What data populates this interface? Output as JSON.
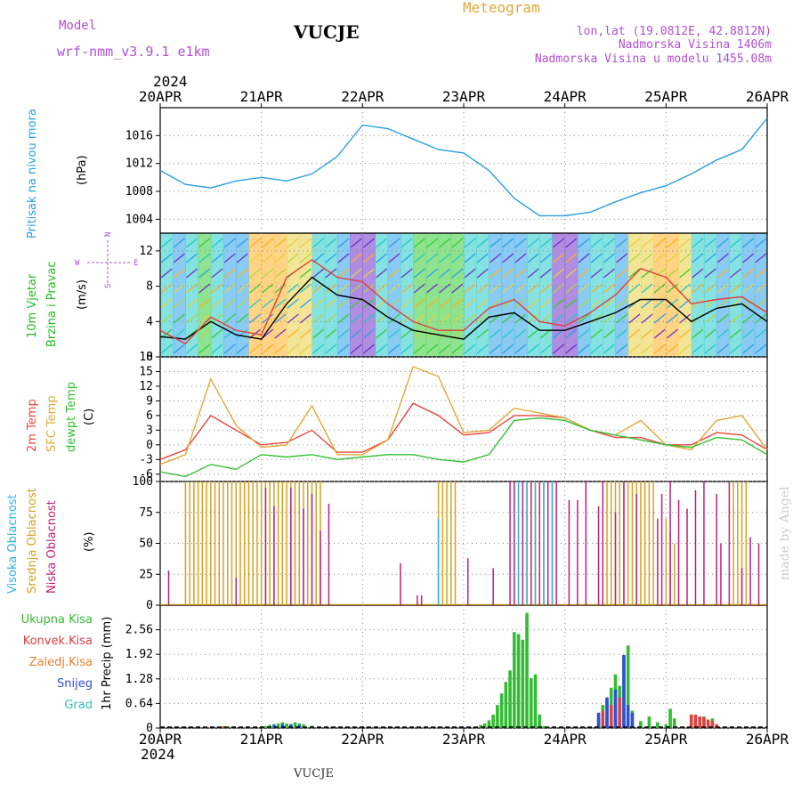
{
  "header": {
    "model_label": "Model",
    "model_value": "wrf-nmm_v3.9.1  e1km",
    "station": "VUCJE",
    "meteogram_label": "Meteogram",
    "lonlat": "lon,lat (19.0812E, 42.8812N)",
    "altitude": "Nadmorska Visina 1406m",
    "model_altitude": "Nadmorska Visina u modelu 1455.08m",
    "year_top": "2024",
    "year_bottom": "2024",
    "footer_station": "VUCJE",
    "credit": "made by Angel"
  },
  "colors": {
    "pressure": "#2b9fe0",
    "wind_mean": "#000000",
    "wind_gust": "#e0403a",
    "temp2m": "#e8453c",
    "sfctemp": "#e0a838",
    "dewpt": "#33c033",
    "high_cloud": "#30b0e0",
    "mid_cloud": "#d8a020",
    "low_cloud": "#c0207a",
    "total_precip": "#33bb33",
    "conv_precip": "#e04040",
    "frozen_precip": "#e88030",
    "snow": "#3050d8",
    "hail": "#30c0c0",
    "wind_label": "#22bb22",
    "rose": "#b050d0"
  },
  "chart_data": [
    {
      "type": "line",
      "title": "",
      "ylabel_left": "Pritisak na nivou mora",
      "ylabel_right": "(hPa)",
      "x_ticks": [
        "20APR",
        "21APR",
        "22APR",
        "23APR",
        "24APR",
        "25APR",
        "26APR"
      ],
      "ylim": [
        1002,
        1020
      ],
      "y_ticks": [
        1004,
        1008,
        1012,
        1016
      ],
      "grid": true,
      "series": [
        {
          "name": "pressure",
          "x_hours": [
            0,
            6,
            12,
            18,
            24,
            30,
            36,
            42,
            48,
            54,
            60,
            66,
            72,
            78,
            84,
            90,
            96,
            102,
            108,
            114,
            120,
            126,
            132,
            138,
            144
          ],
          "values": [
            1011,
            1009,
            1008.5,
            1009.5,
            1010,
            1009.5,
            1010.5,
            1013,
            1017.5,
            1017,
            1015.5,
            1014,
            1013.5,
            1011,
            1007,
            1004.5,
            1004.5,
            1005,
            1006.5,
            1007.8,
            1008.8,
            1010.5,
            1012.5,
            1014,
            1018.5
          ]
        }
      ]
    },
    {
      "type": "line",
      "title": "",
      "ylabel_left": "10m Vjetar Brzina i Pravac",
      "ylabel_right": "(m/s)",
      "rose_labels": [
        "N",
        "E",
        "W",
        "S"
      ],
      "ylim": [
        0,
        14
      ],
      "y_ticks": [
        0,
        4,
        8,
        12
      ],
      "grid": true,
      "series": [
        {
          "name": "mean",
          "x_hours": [
            0,
            6,
            12,
            18,
            24,
            30,
            36,
            42,
            48,
            54,
            60,
            66,
            72,
            78,
            84,
            90,
            96,
            102,
            108,
            114,
            120,
            126,
            132,
            138,
            144
          ],
          "values": [
            2.3,
            2,
            4,
            2.5,
            2,
            6,
            9,
            7,
            6.5,
            4.5,
            3,
            2.5,
            2,
            4.5,
            5,
            3,
            3,
            4,
            5,
            6.5,
            6.5,
            4,
            5.5,
            6,
            4
          ]
        },
        {
          "name": "gust",
          "x_hours": [
            0,
            6,
            12,
            18,
            24,
            30,
            36,
            42,
            48,
            54,
            60,
            66,
            72,
            78,
            84,
            90,
            96,
            102,
            108,
            114,
            120,
            126,
            132,
            138,
            144
          ],
          "values": [
            3,
            1.5,
            4.5,
            3,
            2.5,
            9,
            11,
            9,
            8.5,
            6,
            4,
            3,
            3,
            5.5,
            6.5,
            4,
            3.5,
            5,
            7,
            10,
            9,
            6,
            6.5,
            6.8,
            5
          ]
        }
      ]
    },
    {
      "type": "line",
      "title": "",
      "ylabel_left": [
        "2m Temp",
        "SFC Temp",
        "dewpt Temp"
      ],
      "ylabel_right": "(C)",
      "ylim": [
        -7.5,
        18
      ],
      "y_ticks": [
        -6,
        -3,
        0,
        3,
        6,
        9,
        12,
        15,
        18
      ],
      "grid": true,
      "series": [
        {
          "name": "2m Temp",
          "x_hours": [
            0,
            6,
            12,
            18,
            24,
            30,
            36,
            42,
            48,
            54,
            60,
            66,
            72,
            78,
            84,
            90,
            96,
            102,
            108,
            114,
            120,
            126,
            132,
            138,
            144
          ],
          "values": [
            -3,
            -1,
            6,
            3,
            0,
            0.5,
            3,
            -1.5,
            -1.5,
            1,
            8.5,
            6,
            2,
            2.5,
            6,
            6,
            5.5,
            3,
            1.5,
            1.5,
            0,
            0,
            2.5,
            2,
            -1
          ]
        },
        {
          "name": "SFC Temp",
          "x_hours": [
            0,
            6,
            12,
            18,
            24,
            30,
            36,
            42,
            48,
            54,
            60,
            66,
            72,
            78,
            84,
            90,
            96,
            102,
            108,
            114,
            120,
            126,
            132,
            138,
            144
          ],
          "values": [
            -4,
            -2,
            13.5,
            4,
            -0.5,
            0,
            8,
            -2,
            -2,
            1,
            16,
            14,
            2.5,
            3,
            7.5,
            6.5,
            5.5,
            3,
            2,
            5,
            0,
            -1,
            5,
            6,
            -1
          ]
        },
        {
          "name": "dewpt Temp",
          "x_hours": [
            0,
            6,
            12,
            18,
            24,
            30,
            36,
            42,
            48,
            54,
            60,
            66,
            72,
            78,
            84,
            90,
            96,
            102,
            108,
            114,
            120,
            126,
            132,
            138,
            144
          ],
          "values": [
            -5.5,
            -6.5,
            -4,
            -5,
            -2,
            -2.5,
            -2,
            -3,
            -2.5,
            -2,
            -2,
            -3,
            -3.5,
            -2,
            5,
            5.5,
            5,
            3,
            2,
            1,
            0,
            -0.5,
            1.5,
            1,
            -2
          ]
        }
      ]
    },
    {
      "type": "bar",
      "title": "",
      "ylabel_left": [
        "Visoka Oblacnost",
        "Srednja Oblacnost",
        "Niska Oblacnost"
      ],
      "ylabel_right": "(%)",
      "ylim": [
        0,
        100
      ],
      "y_ticks": [
        0,
        25,
        50,
        75,
        100
      ],
      "grid": true,
      "series": [
        {
          "name": "Srednja Oblacnost",
          "x_hours": [
            6,
            7,
            8,
            9,
            10,
            11,
            12,
            13,
            14,
            15,
            16,
            17,
            18,
            19,
            20,
            21,
            22,
            23,
            24,
            25,
            26,
            27,
            28,
            29,
            30,
            31,
            32,
            33,
            34,
            35,
            36,
            37,
            38,
            66,
            67,
            68,
            69,
            70,
            87,
            88,
            89,
            90,
            91,
            92,
            93,
            106,
            107,
            108,
            109,
            110,
            111,
            112,
            113,
            114,
            115,
            116,
            117,
            120,
            121,
            122,
            136,
            137,
            138,
            139
          ],
          "values": [
            100,
            100,
            100,
            100,
            100,
            100,
            100,
            100,
            100,
            100,
            100,
            100,
            100,
            100,
            100,
            100,
            100,
            100,
            100,
            100,
            100,
            100,
            100,
            100,
            100,
            100,
            100,
            100,
            100,
            100,
            100,
            100,
            100,
            100,
            100,
            100,
            100,
            100,
            100,
            100,
            100,
            100,
            100,
            100,
            100,
            100,
            100,
            100,
            100,
            100,
            100,
            100,
            100,
            100,
            100,
            100,
            100,
            70,
            60,
            50,
            100,
            100,
            100,
            100
          ]
        },
        {
          "name": "Niska Oblacnost",
          "x_hours": [
            2,
            18,
            25,
            27,
            31,
            34,
            36,
            38,
            40,
            57,
            61,
            62,
            73,
            79,
            83,
            84,
            86,
            88,
            90,
            92,
            94,
            97,
            99,
            101,
            104,
            105,
            108,
            110,
            113,
            118,
            119,
            121,
            123,
            125,
            127,
            129,
            132,
            133,
            135,
            138,
            140,
            142
          ],
          "values": [
            28,
            22,
            95,
            80,
            95,
            78,
            90,
            60,
            82,
            34,
            8,
            8,
            38,
            30,
            100,
            100,
            100,
            100,
            100,
            100,
            100,
            85,
            85,
            100,
            80,
            100,
            75,
            100,
            90,
            70,
            90,
            100,
            85,
            78,
            93,
            100,
            90,
            50,
            100,
            30,
            55,
            50
          ]
        },
        {
          "name": "Visoka Oblacnost",
          "x_hours": [
            66,
            85,
            87,
            89,
            91,
            93
          ],
          "values": [
            70,
            100,
            100,
            100,
            100,
            100
          ]
        }
      ]
    },
    {
      "type": "bar",
      "title": "",
      "ylabel_left": [
        "Ukupna Kisa",
        "Konvek.Kisa",
        "Zaledj.Kisa",
        "Snijeg",
        "Grad"
      ],
      "ylabel_right": "1hr Precip (mm)",
      "ylim": [
        0,
        3.2
      ],
      "y_ticks": [
        0,
        0.64,
        1.28,
        1.92,
        2.56
      ],
      "grid": true,
      "series": [
        {
          "name": "Ukupna Kisa",
          "x_hours": [
            15,
            16,
            25,
            26,
            27,
            28,
            29,
            30,
            31,
            32,
            33,
            34,
            36,
            76,
            77,
            78,
            79,
            80,
            81,
            82,
            83,
            84,
            85,
            86,
            87,
            88,
            89,
            90,
            91,
            92,
            104,
            105,
            106,
            107,
            108,
            109,
            110,
            111,
            112,
            114,
            116,
            118,
            120,
            121,
            122,
            126,
            129,
            131
          ],
          "values": [
            0.05,
            0.03,
            0.05,
            0.08,
            0.1,
            0.12,
            0.15,
            0.12,
            0.1,
            0.15,
            0.12,
            0.1,
            0.06,
            0.08,
            0.12,
            0.2,
            0.35,
            0.6,
            0.9,
            1.2,
            1.5,
            2.5,
            2.45,
            2.3,
            3.0,
            1.3,
            1.4,
            0.35,
            0.05,
            0.03,
            0.25,
            0.6,
            0.75,
            1.05,
            1.4,
            1.1,
            1.9,
            2.15,
            0.45,
            0.18,
            0.3,
            0.15,
            0.1,
            0.5,
            0.25,
            0.35,
            0.3,
            0.25
          ]
        },
        {
          "name": "Konvek.Kisa",
          "x_hours": [
            15,
            105,
            107,
            109,
            126,
            127,
            128,
            129,
            130,
            131,
            132
          ],
          "values": [
            0.04,
            0.45,
            0.6,
            0.8,
            0.35,
            0.35,
            0.3,
            0.28,
            0.22,
            0.18,
            0.1
          ]
        },
        {
          "name": "Snijeg",
          "x_hours": [
            27,
            29,
            31,
            33,
            104,
            106,
            108,
            110,
            111,
            112
          ],
          "values": [
            0.08,
            0.1,
            0.1,
            0.08,
            0.4,
            0.8,
            1.0,
            1.9,
            0.6,
            0.4
          ]
        }
      ]
    }
  ]
}
